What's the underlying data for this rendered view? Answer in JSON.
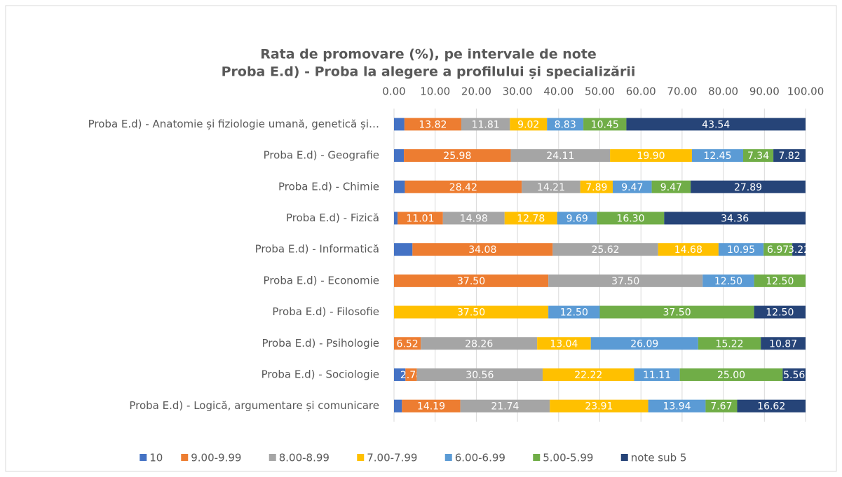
{
  "chart_data": {
    "type": "stacked_barh",
    "title": [
      "Rata de promovare (%), pe intervale de note",
      "Proba E.d) - Proba la alegere a profilului și specializării"
    ],
    "categories": [
      "Proba E.d) - Anatomie și fiziologie umană, genetică și…",
      "Proba E.d) - Geografie",
      "Proba E.d) - Chimie",
      "Proba E.d) - Fizică",
      "Proba E.d) - Informatică",
      "Proba E.d) - Economie",
      "Proba E.d) - Filosofie",
      "Proba E.d) - Psihologie",
      "Proba E.d) - Sociologie",
      "Proba E.d) - Logică, argumentare și comunicare"
    ],
    "series": [
      {
        "name": "10",
        "color": "#4472c4",
        "values": [
          2.53,
          2.4,
          2.63,
          0.88,
          4.48,
          0,
          0,
          0,
          2.78,
          1.93
        ],
        "value_labels": [
          null,
          null,
          null,
          null,
          null,
          null,
          null,
          null,
          null,
          null
        ]
      },
      {
        "name": "9.00-9.99",
        "color": "#ed7d31",
        "values": [
          13.82,
          25.98,
          28.42,
          11.01,
          34.08,
          37.5,
          0,
          6.52,
          2.78,
          14.19
        ],
        "value_labels": [
          "13.82",
          "25.98",
          "28.42",
          "11.01",
          "34.08",
          "37.50",
          null,
          "6.52",
          "2.78",
          "14.19"
        ]
      },
      {
        "name": "8.00-8.99",
        "color": "#a5a5a5",
        "values": [
          11.81,
          24.11,
          14.21,
          14.98,
          25.62,
          37.5,
          0,
          28.26,
          30.56,
          21.74
        ],
        "value_labels": [
          "11.81",
          "24.11",
          "14.21",
          "14.98",
          "25.62",
          "37.50",
          null,
          "28.26",
          "30.56",
          "21.74"
        ]
      },
      {
        "name": "7.00-7.99",
        "color": "#ffc000",
        "values": [
          9.02,
          19.9,
          7.89,
          12.78,
          14.68,
          0,
          37.5,
          13.04,
          22.22,
          23.91
        ],
        "value_labels": [
          "9.02",
          "19.90",
          "7.89",
          "12.78",
          "14.68",
          null,
          "37.50",
          "13.04",
          "22.22",
          "23.91"
        ]
      },
      {
        "name": "6.00-6.99",
        "color": "#5b9bd5",
        "values": [
          8.83,
          12.45,
          9.47,
          9.69,
          10.95,
          12.5,
          12.5,
          26.09,
          11.11,
          13.94
        ],
        "value_labels": [
          "8.83",
          "12.45",
          "9.47",
          "9.69",
          "10.95",
          "12.50",
          "12.50",
          "26.09",
          "11.11",
          "13.94"
        ]
      },
      {
        "name": "5.00-5.99",
        "color": "#70ad47",
        "values": [
          10.45,
          7.34,
          9.47,
          16.3,
          6.97,
          12.5,
          37.5,
          15.22,
          25,
          7.67
        ],
        "value_labels": [
          "10.45",
          "7.34",
          "9.47",
          "16.30",
          "6.97",
          "12.50",
          "37.50",
          "15.22",
          "25.00",
          "7.67"
        ]
      },
      {
        "name": "note sub 5",
        "color": "#264478",
        "values": [
          43.54,
          7.82,
          27.89,
          34.36,
          3.22,
          0,
          12.5,
          10.87,
          5.56,
          16.62
        ],
        "value_labels": [
          "43.54",
          "7.82",
          "27.89",
          "34.36",
          "3.22",
          null,
          "12.50",
          "10.87",
          "5.56",
          "16.62"
        ]
      }
    ],
    "xlim": [
      0,
      100
    ],
    "xticks": [
      {
        "value": 0,
        "label": "0.00"
      },
      {
        "value": 10,
        "label": "10.00"
      },
      {
        "value": 20,
        "label": "20.00"
      },
      {
        "value": 30,
        "label": "30.00"
      },
      {
        "value": 40,
        "label": "40.00"
      },
      {
        "value": 50,
        "label": "50.00"
      },
      {
        "value": 60,
        "label": "60.00"
      },
      {
        "value": 70,
        "label": "70.00"
      },
      {
        "value": 80,
        "label": "80.00"
      },
      {
        "value": 90,
        "label": "90.00"
      },
      {
        "value": 100,
        "label": "100.00"
      }
    ],
    "grid": true,
    "legend": "bottom"
  }
}
